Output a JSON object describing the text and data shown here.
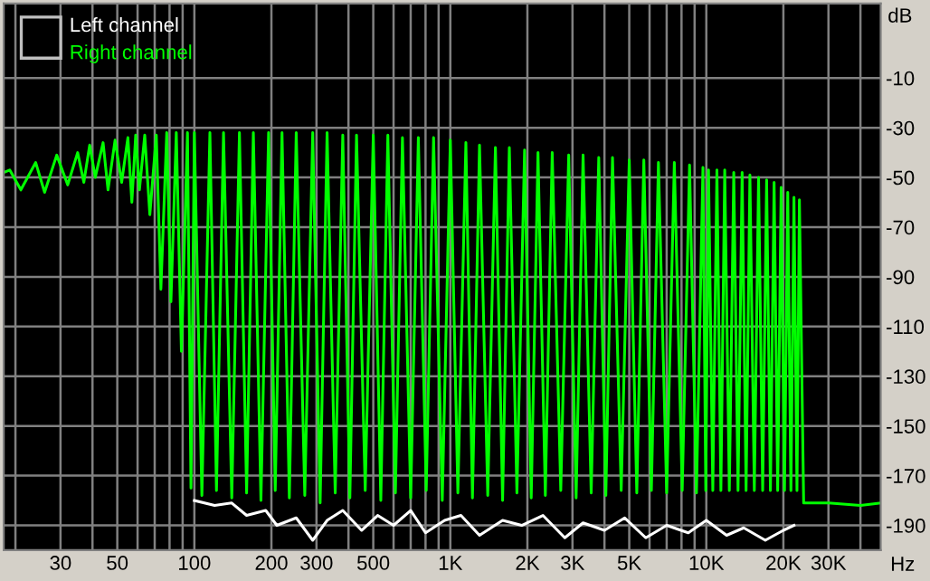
{
  "chart_data": {
    "type": "line",
    "xlabel": "Hz",
    "ylabel": "dB",
    "log": "x",
    "grid": true,
    "legend": "top left",
    "xlim": [
      18,
      48000
    ],
    "ylim": [
      -200,
      20
    ],
    "xticks": [
      {
        "value": 20,
        "label": null
      },
      30,
      {
        "value": 40,
        "label": null
      },
      50,
      {
        "value": 60,
        "label": null
      },
      {
        "value": 70,
        "label": null
      },
      {
        "value": 80,
        "label": null
      },
      {
        "value": 90,
        "label": null
      },
      100,
      200,
      300,
      {
        "value": 400,
        "label": null
      },
      500,
      {
        "value": 600,
        "label": null
      },
      {
        "value": 700,
        "label": null
      },
      {
        "value": 800,
        "label": null
      },
      {
        "value": 900,
        "label": null
      },
      {
        "value": 1000,
        "label": "1K"
      },
      {
        "value": 2000,
        "label": "2K"
      },
      {
        "value": 3000,
        "label": "3K"
      },
      {
        "value": 4000,
        "label": null
      },
      {
        "value": 5000,
        "label": "5K"
      },
      {
        "value": 6000,
        "label": null
      },
      {
        "value": 7000,
        "label": null
      },
      {
        "value": 8000,
        "label": null
      },
      {
        "value": 9000,
        "label": null
      },
      {
        "value": 10000,
        "label": "10K"
      },
      {
        "value": 20000,
        "label": "20K"
      },
      {
        "value": 30000,
        "label": "30K"
      },
      {
        "value": 40000,
        "label": null
      }
    ],
    "yticks": [
      -10,
      -30,
      -50,
      -70,
      -90,
      -110,
      -130,
      -150,
      -170,
      -190
    ],
    "series": [
      {
        "name": "Left channel",
        "color": "#ffffff",
        "x": [
          100,
          120,
          140,
          160,
          190,
          210,
          250,
          290,
          330,
          380,
          450,
          520,
          600,
          700,
          800,
          950,
          1100,
          1300,
          1600,
          1900,
          2300,
          2800,
          3300,
          4000,
          4800,
          5800,
          7000,
          8500,
          10000,
          12000,
          14000,
          17000,
          20000,
          22000
        ],
        "values": [
          -180,
          -182,
          -181,
          -186,
          -184,
          -190,
          -187,
          -196,
          -188,
          -184,
          -192,
          -186,
          -190,
          -184,
          -193,
          -188,
          -186,
          -194,
          -188,
          -190,
          -186,
          -195,
          -189,
          -192,
          -187,
          -195,
          -190,
          -193,
          -188,
          -194,
          -191,
          -196,
          -192,
          -190
        ]
      },
      {
        "name": "Right channel",
        "color": "#00ff00",
        "x": [
          18,
          19,
          21,
          24,
          26,
          29,
          32,
          35,
          37,
          39,
          41,
          44,
          46,
          49,
          52,
          55,
          57,
          59,
          61,
          64,
          67,
          71,
          74,
          78,
          81,
          85,
          89,
          94,
          97,
          100,
          107,
          115,
          122,
          130,
          140,
          150,
          160,
          170,
          182,
          195,
          207,
          220,
          235,
          250,
          270,
          290,
          310,
          330,
          355,
          380,
          405,
          430,
          465,
          500,
          535,
          570,
          610,
          650,
          700,
          750,
          805,
          860,
          930,
          1000,
          1070,
          1150,
          1220,
          1300,
          1400,
          1500,
          1600,
          1700,
          1820,
          1950,
          2070,
          2200,
          2350,
          2500,
          2700,
          2900,
          3100,
          3300,
          3550,
          3800,
          4050,
          4300,
          4650,
          5000,
          5350,
          5700,
          6100,
          6500,
          7000,
          7500,
          8050,
          8600,
          9150,
          9700,
          9950,
          10200,
          10600,
          11000,
          11400,
          11800,
          12300,
          12800,
          13300,
          13800,
          14300,
          14800,
          15400,
          16000,
          16600,
          17200,
          17800,
          18400,
          19000,
          19600,
          20200,
          20800,
          21400,
          22000,
          22600,
          23100,
          24000,
          30000,
          40000,
          48000
        ],
        "values": [
          -48,
          -47,
          -55,
          -44,
          -56,
          -41,
          -53,
          -40,
          -52,
          -37,
          -50,
          -36,
          -55,
          -35,
          -52,
          -34,
          -60,
          -33,
          -55,
          -33,
          -65,
          -33,
          -95,
          -32,
          -100,
          -32,
          -120,
          -32,
          -175,
          -32,
          -178,
          -32,
          -176,
          -32,
          -179,
          -32,
          -177,
          -32,
          -180,
          -32,
          -176,
          -32,
          -179,
          -32,
          -178,
          -32,
          -181,
          -32,
          -177,
          -33,
          -179,
          -33,
          -176,
          -33,
          -180,
          -33,
          -177,
          -34,
          -179,
          -34,
          -176,
          -34,
          -180,
          -35,
          -177,
          -36,
          -179,
          -37,
          -178,
          -38,
          -180,
          -38,
          -177,
          -39,
          -179,
          -40,
          -178,
          -40,
          -176,
          -41,
          -179,
          -41,
          -177,
          -42,
          -178,
          -42,
          -176,
          -43,
          -177,
          -43,
          -176,
          -44,
          -177,
          -44,
          -176,
          -45,
          -177,
          -46,
          -176,
          -47,
          -176,
          -47,
          -176,
          -47,
          -176,
          -48,
          -176,
          -48,
          -176,
          -49,
          -176,
          -50,
          -176,
          -51,
          -176,
          -52,
          -176,
          -54,
          -176,
          -56,
          -176,
          -58,
          -176,
          -59,
          -181,
          -181,
          -182,
          -181
        ]
      }
    ]
  }
}
